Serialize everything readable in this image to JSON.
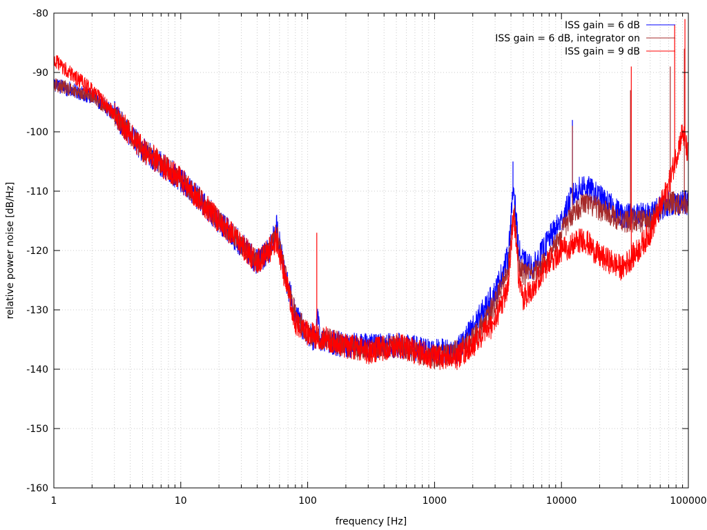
{
  "chart_data": {
    "type": "line",
    "title": "",
    "xlabel": "frequency [Hz]",
    "ylabel": "relative power noise [dB/Hz]",
    "x_scale": "log",
    "xlim": [
      1,
      100000
    ],
    "ylim": [
      -160,
      -80
    ],
    "grid": true,
    "legend_position": "top-right",
    "x_ticks": [
      {
        "value": 1,
        "label": "1"
      },
      {
        "value": 10,
        "label": "10"
      },
      {
        "value": 100,
        "label": "100"
      },
      {
        "value": 1000,
        "label": "1000"
      },
      {
        "value": 10000,
        "label": "10000"
      },
      {
        "value": 100000,
        "label": "100000"
      }
    ],
    "y_ticks": [
      {
        "value": -80,
        "label": "-80"
      },
      {
        "value": -90,
        "label": "-90"
      },
      {
        "value": -100,
        "label": "-100"
      },
      {
        "value": -110,
        "label": "-110"
      },
      {
        "value": -120,
        "label": "-120"
      },
      {
        "value": -130,
        "label": "-130"
      },
      {
        "value": -140,
        "label": "-140"
      },
      {
        "value": -150,
        "label": "-150"
      },
      {
        "value": -160,
        "label": "-160"
      }
    ],
    "series": [
      {
        "name": "ISS gain = 6 dB",
        "color": "#0000ff",
        "noise": 2.2,
        "points": [
          [
            1,
            -92
          ],
          [
            2,
            -94
          ],
          [
            3,
            -97
          ],
          [
            5,
            -103
          ],
          [
            10,
            -108
          ],
          [
            20,
            -115
          ],
          [
            30,
            -119
          ],
          [
            40,
            -122
          ],
          [
            50,
            -120
          ],
          [
            57,
            -116
          ],
          [
            65,
            -123
          ],
          [
            80,
            -131
          ],
          [
            100,
            -134
          ],
          [
            115,
            -135
          ],
          [
            120,
            -131
          ],
          [
            125,
            -135
          ],
          [
            200,
            -136
          ],
          [
            300,
            -136
          ],
          [
            500,
            -136
          ],
          [
            1000,
            -137
          ],
          [
            1500,
            -137
          ],
          [
            2000,
            -133
          ],
          [
            3000,
            -127
          ],
          [
            3800,
            -121
          ],
          [
            4200,
            -109
          ],
          [
            4600,
            -120
          ],
          [
            5000,
            -122
          ],
          [
            6000,
            -123
          ],
          [
            8000,
            -118
          ],
          [
            10000,
            -115
          ],
          [
            12000,
            -111
          ],
          [
            15000,
            -109
          ],
          [
            20000,
            -111
          ],
          [
            30000,
            -114
          ],
          [
            50000,
            -114
          ],
          [
            70000,
            -112
          ],
          [
            100000,
            -112
          ]
        ],
        "spikes": [
          [
            4150,
            -105
          ],
          [
            12200,
            -98
          ],
          [
            57,
            -114
          ]
        ]
      },
      {
        "name": "ISS gain = 6 dB, integrator on",
        "color": "#a52a2a",
        "noise": 2.0,
        "points": [
          [
            1,
            -92
          ],
          [
            2,
            -94
          ],
          [
            3,
            -97
          ],
          [
            5,
            -103
          ],
          [
            10,
            -108
          ],
          [
            20,
            -115
          ],
          [
            30,
            -119
          ],
          [
            40,
            -122
          ],
          [
            50,
            -120
          ],
          [
            57,
            -117
          ],
          [
            65,
            -123
          ],
          [
            80,
            -131
          ],
          [
            100,
            -134
          ],
          [
            200,
            -136
          ],
          [
            300,
            -137
          ],
          [
            500,
            -136
          ],
          [
            1000,
            -138
          ],
          [
            1500,
            -137
          ],
          [
            2000,
            -135
          ],
          [
            3000,
            -129
          ],
          [
            3800,
            -123
          ],
          [
            4200,
            -112
          ],
          [
            4600,
            -122
          ],
          [
            5000,
            -124
          ],
          [
            6000,
            -124
          ],
          [
            8000,
            -121
          ],
          [
            10000,
            -117
          ],
          [
            12000,
            -114
          ],
          [
            15000,
            -112
          ],
          [
            20000,
            -113
          ],
          [
            30000,
            -115
          ],
          [
            50000,
            -115
          ],
          [
            70000,
            -112
          ],
          [
            100000,
            -112
          ]
        ],
        "spikes": [
          [
            12200,
            -99
          ],
          [
            35000,
            -93
          ],
          [
            72000,
            -89
          ],
          [
            93000,
            -86
          ]
        ]
      },
      {
        "name": "ISS gain = 9 dB",
        "color": "#ff0000",
        "noise": 2.2,
        "points": [
          [
            1,
            -88
          ],
          [
            2,
            -93
          ],
          [
            3,
            -97
          ],
          [
            5,
            -103
          ],
          [
            10,
            -108
          ],
          [
            20,
            -115
          ],
          [
            30,
            -119
          ],
          [
            40,
            -122
          ],
          [
            50,
            -120
          ],
          [
            57,
            -118
          ],
          [
            65,
            -124
          ],
          [
            80,
            -132
          ],
          [
            100,
            -134
          ],
          [
            200,
            -136
          ],
          [
            300,
            -137
          ],
          [
            500,
            -136
          ],
          [
            1000,
            -138
          ],
          [
            1500,
            -138
          ],
          [
            2000,
            -136
          ],
          [
            3000,
            -132
          ],
          [
            3800,
            -126
          ],
          [
            4200,
            -113
          ],
          [
            4600,
            -125
          ],
          [
            5000,
            -128
          ],
          [
            6000,
            -126
          ],
          [
            8000,
            -122
          ],
          [
            10000,
            -120
          ],
          [
            15000,
            -118
          ],
          [
            20000,
            -121
          ],
          [
            25000,
            -122
          ],
          [
            30000,
            -123
          ],
          [
            40000,
            -120
          ],
          [
            50000,
            -117
          ],
          [
            70000,
            -109
          ],
          [
            90000,
            -100
          ],
          [
            100000,
            -104
          ]
        ],
        "spikes": [
          [
            118,
            -117
          ],
          [
            35500,
            -89
          ],
          [
            78000,
            -82
          ],
          [
            94000,
            -81
          ]
        ]
      }
    ]
  }
}
